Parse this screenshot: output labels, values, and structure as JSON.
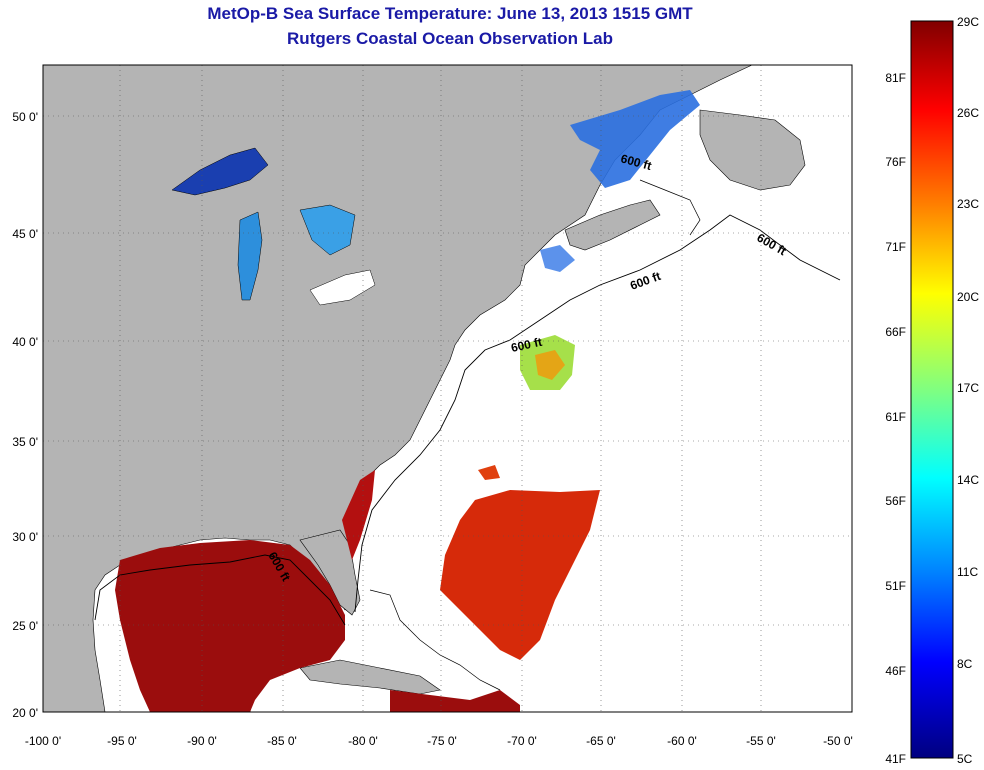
{
  "title": "MetOp-B Sea Surface Temperature:  June 13, 2013 1515 GMT",
  "subtitle": "Rutgers Coastal Ocean Observation Lab",
  "map": {
    "lon_ticks": [
      "-100 0'",
      "-95 0'",
      "-90 0'",
      "-85 0'",
      "-80 0'",
      "-75 0'",
      "-70 0'",
      "-65 0'",
      "-60 0'",
      "-55 0'",
      "-50 0'"
    ],
    "lat_ticks": [
      "50 0'",
      "45 0'",
      "40 0'",
      "35 0'",
      "30 0'",
      "25 0'",
      "20 0'"
    ],
    "contour_labels": [
      "600 ft",
      "600 ft",
      "600 ft",
      "600 ft",
      "600 ft"
    ],
    "land_color": "#b4b4b4",
    "no_data_color": "#ffffff"
  },
  "colorbar": {
    "celsius": [
      "29C",
      "26C",
      "23C",
      "20C",
      "17C",
      "14C",
      "11C",
      "8C",
      "5C"
    ],
    "fahrenheit": [
      "81F",
      "76F",
      "71F",
      "66F",
      "61F",
      "56F",
      "51F",
      "46F",
      "41F"
    ],
    "gradient": [
      "#800000",
      "#ff0000",
      "#ff8000",
      "#ffff00",
      "#80ff80",
      "#00ffff",
      "#0080ff",
      "#0000ff",
      "#000080"
    ]
  }
}
